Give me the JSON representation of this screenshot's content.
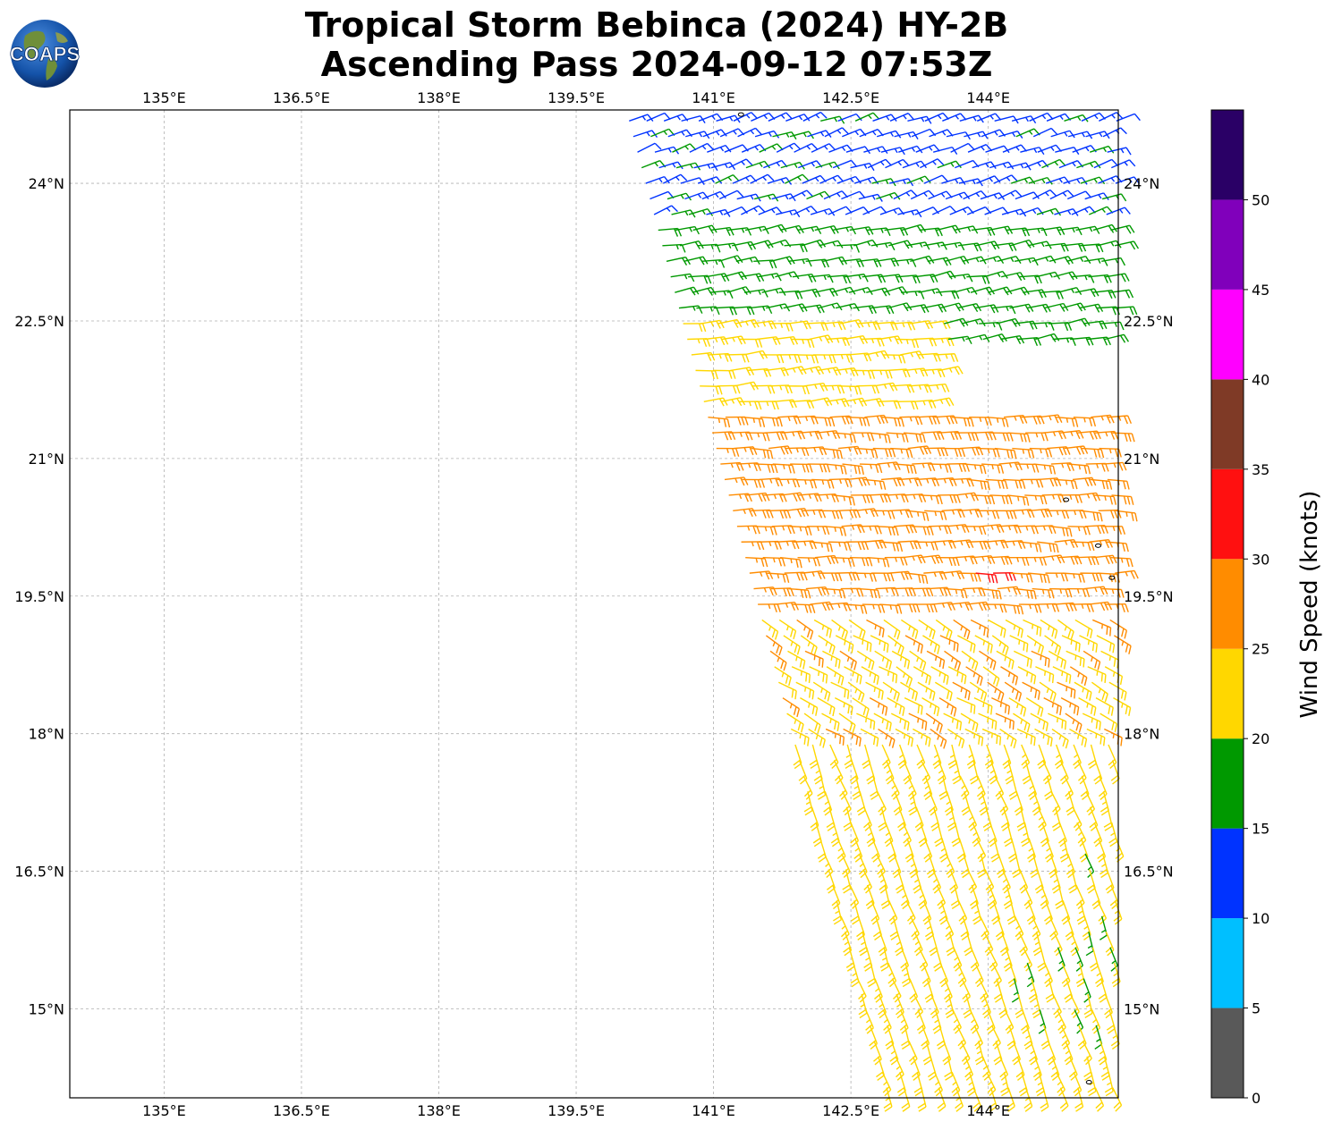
{
  "title": {
    "line1": "Tropical Storm Bebinca (2024) HY-2B",
    "line2": "Ascending Pass 2024-09-12 07:53Z"
  },
  "logo": {
    "text": "COAPS",
    "icon": "globe-icon"
  },
  "map": {
    "lon_range": [
      133.97,
      145.42
    ],
    "lat_range": [
      14.03,
      24.8
    ],
    "lon_ticks": [
      "135°E",
      "136.5°E",
      "138°E",
      "139.5°E",
      "141°E",
      "142.5°E",
      "144°E"
    ],
    "lon_tick_values": [
      135,
      136.5,
      138,
      139.5,
      141,
      142.5,
      144
    ],
    "lat_ticks": [
      "24°N",
      "22.5°N",
      "21°N",
      "19.5°N",
      "18°N",
      "16.5°N",
      "15°N"
    ],
    "lat_tick_values": [
      24,
      22.5,
      21,
      19.5,
      18,
      16.5,
      15
    ],
    "gridlines": true,
    "swath": {
      "description_note": "",
      "start_lon": 140.1,
      "start_lat": 24.6,
      "end_lon": 142.9,
      "end_lat": 14.1
    },
    "islands_color": "#000000"
  },
  "colorbar": {
    "label": "Wind Speed (knots)",
    "ticks": [
      "0",
      "5",
      "10",
      "15",
      "20",
      "25",
      "30",
      "35",
      "40",
      "45",
      "50"
    ],
    "bins": [
      {
        "min": 0,
        "max": 5,
        "color": "#595959"
      },
      {
        "min": 5,
        "max": 10,
        "color": "#00bfff"
      },
      {
        "min": 10,
        "max": 15,
        "color": "#0033ff"
      },
      {
        "min": 15,
        "max": 20,
        "color": "#009900"
      },
      {
        "min": 20,
        "max": 25,
        "color": "#ffd700"
      },
      {
        "min": 25,
        "max": 30,
        "color": "#ff8c00"
      },
      {
        "min": 30,
        "max": 35,
        "color": "#ff1010"
      },
      {
        "min": 35,
        "max": 40,
        "color": "#7f3a26"
      },
      {
        "min": 40,
        "max": 45,
        "color": "#ff00ff"
      },
      {
        "min": 45,
        "max": 50,
        "color": "#8000bb"
      },
      {
        "min": 50,
        "max": 55,
        "color": "#2a0066"
      }
    ]
  },
  "chart_data": {
    "type": "scatter",
    "title": "Tropical Storm Bebinca (2024) HY-2B Ascending Pass 2024-09-12 07:53Z",
    "xlabel": "",
    "ylabel": "",
    "xlim": [
      133.97,
      145.42
    ],
    "ylim": [
      14.03,
      24.8
    ],
    "grid": true,
    "legend": "colorbar-right",
    "wind_field": {
      "note_units": "knots",
      "regions": [
        {
          "lat_min": 23.6,
          "lat_max": 24.8,
          "lon_min": 140.0,
          "lon_max": 145.4,
          "speed": 14,
          "dir_from_deg": 70
        },
        {
          "lat_min": 22.2,
          "lat_max": 23.6,
          "lon_min": 140.0,
          "lon_max": 145.4,
          "speed": 18,
          "dir_from_deg": 80
        },
        {
          "lat_min": 21.2,
          "lat_max": 22.6,
          "lon_min": 140.0,
          "lon_max": 143.5,
          "speed": 23,
          "dir_from_deg": 85
        },
        {
          "lat_min": 19.4,
          "lat_max": 21.6,
          "lon_min": 140.0,
          "lon_max": 145.4,
          "speed": 27,
          "dir_from_deg": 90
        },
        {
          "lat_min": 19.7,
          "lat_max": 19.9,
          "lon_min": 143.8,
          "lon_max": 144.2,
          "speed": 31,
          "dir_from_deg": 90
        },
        {
          "lat_min": 18.0,
          "lat_max": 19.4,
          "lon_min": 140.0,
          "lon_max": 145.4,
          "speed": 24,
          "dir_from_deg": 120
        },
        {
          "lat_min": 14.0,
          "lat_max": 18.0,
          "lon_min": 140.0,
          "lon_max": 145.4,
          "speed": 22,
          "dir_from_deg": 160
        }
      ]
    }
  }
}
